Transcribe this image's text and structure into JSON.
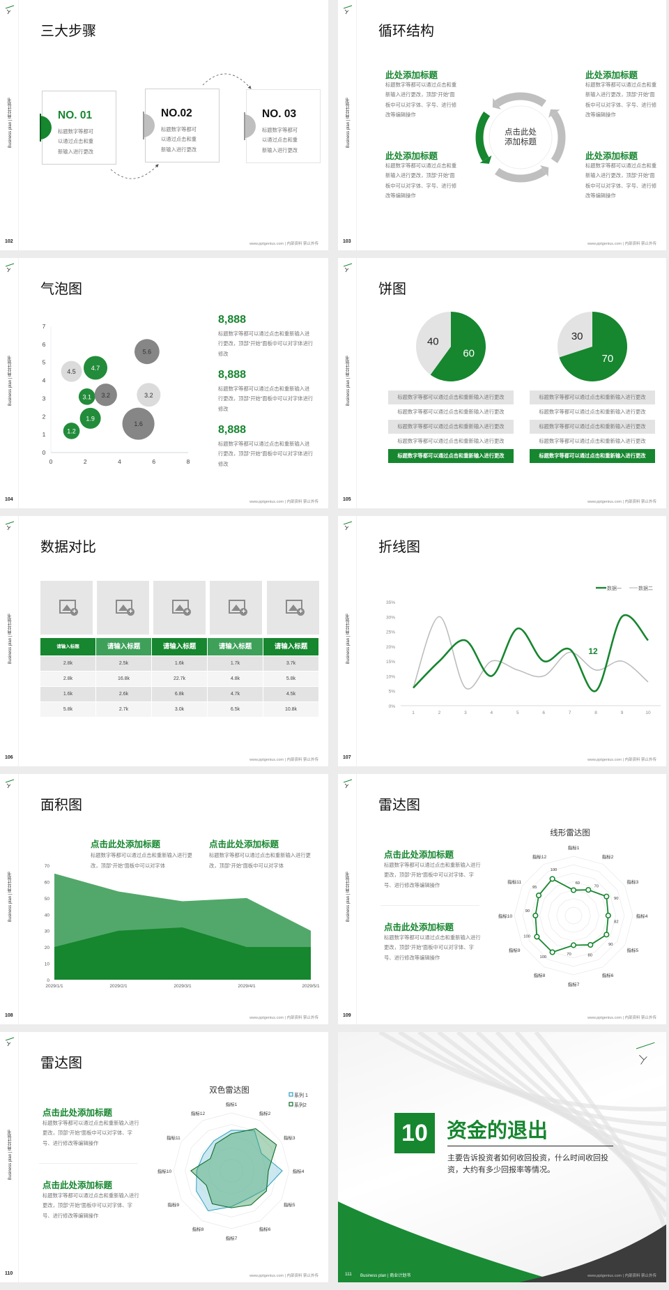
{
  "common": {
    "side_label": "Business plan | 商业计划书",
    "footer": "www.pptgenius.com | 内部资料 禁止外传"
  },
  "colors": {
    "green": "#16862f",
    "mid_green": "#52a86a",
    "light_gray": "#e3e3e3",
    "gray": "#bfbfbf",
    "dark_gray": "#7f7f7f",
    "teal": "#2aa0c0"
  },
  "slides": [
    {
      "page": "102",
      "title": "三大步骤",
      "steps": [
        {
          "label": "NO. 01",
          "text": "标题数字等都可以通过点击和重新输入进行更改",
          "active": true
        },
        {
          "label": "NO.02",
          "text": "标题数字等都可以通过点击和重新输入进行更改",
          "active": false
        },
        {
          "label": "NO. 03",
          "text": "标题数字等都可以通过点击和重新输入进行更改",
          "active": false
        }
      ]
    },
    {
      "page": "103",
      "title": "循环结构",
      "center": "点击此处添加标题",
      "blocks": [
        {
          "heading": "此处添加标题",
          "text": "标题数字等都可以通过点击和重新输入进行更改，顶部“开始”面板中可以对字体、字号、进行修改等编辑操作"
        },
        {
          "heading": "此处添加标题",
          "text": "标题数字等都可以通过点击和重新输入进行更改，顶部“开始”面板中可以对字体、字号、进行修改等编辑操作"
        },
        {
          "heading": "此处添加标题",
          "text": "标题数字等都可以通过点击和重新输入进行更改，顶部“开始”面板中可以对字体、字号、进行修改等编辑操作"
        },
        {
          "heading": "此处添加标题",
          "text": "标题数字等都可以通过点击和重新输入进行更改，顶部“开始”面板中可以对字体、字号、进行修改等编辑操作"
        }
      ]
    },
    {
      "page": "104",
      "title": "气泡图",
      "stats": [
        {
          "value": "8,888",
          "text": "标题数字等都可以通过点击和重新输入进行更改，顶部“开始”面板中可以对字体进行修改"
        },
        {
          "value": "8,888",
          "text": "标题数字等都可以通过点击和重新输入进行更改，顶部“开始”面板中可以对字体进行修改"
        },
        {
          "value": "8,888",
          "text": "标题数字等都可以通过点击和重新输入进行更改，顶部“开始”面板中可以对字体进行修改"
        }
      ]
    },
    {
      "page": "105",
      "title": "饼图",
      "rows": [
        "标题数字等都可以通过点击和重新输入进行更改",
        "标题数字等都可以通过点击和重新输入进行更改",
        "标题数字等都可以通过点击和重新输入进行更改",
        "标题数字等都可以通过点击和重新输入进行更改",
        "标题数字等都可以通过点击和重新输入进行更改"
      ]
    },
    {
      "page": "106",
      "title": "数据对比",
      "table": {
        "headers": [
          "请输入标题",
          "请输入标题",
          "请输入标题",
          "请输入标题",
          "请输入标题"
        ],
        "rows": [
          [
            "2.8k",
            "2.5k",
            "1.6k",
            "1.7k",
            "3.7k"
          ],
          [
            "2.8k",
            "16.8k",
            "22.7k",
            "4.8k",
            "5.8k"
          ],
          [
            "1.6k",
            "2.6k",
            "6.8k",
            "4.7k",
            "4.5k"
          ],
          [
            "5.8k",
            "2.7k",
            "3.0k",
            "6.5k",
            "10.8k"
          ]
        ]
      }
    },
    {
      "page": "107",
      "title": "折线图"
    },
    {
      "page": "108",
      "title": "面积图",
      "blocks": [
        {
          "heading": "点击此处添加标题",
          "text": "标题数字等都可以通过点击和重新输入进行更改，顶部“开始”面板中可以对字体"
        },
        {
          "heading": "点击此处添加标题",
          "text": "标题数字等都可以通过点击和重新输入进行更改，顶部“开始”面板中可以对字体"
        }
      ]
    },
    {
      "page": "109",
      "title": "雷达图",
      "blocks": [
        {
          "heading": "点击此处添加标题",
          "text": "标题数字等都可以通过点击和重新输入进行更改，顶部“开始”面板中可以对字体、字号、进行修改等编辑操作"
        },
        {
          "heading": "点击此处添加标题",
          "text": "标题数字等都可以通过点击和重新输入进行更改，顶部“开始”面板中可以对字体、字号、进行修改等编辑操作"
        }
      ]
    },
    {
      "page": "110",
      "title": "雷达图",
      "blocks": [
        {
          "heading": "点击此处添加标题",
          "text": "标题数字等都可以通过点击和重新输入进行更改，顶部“开始”面板中可以对字体、字号、进行修改等编辑操作"
        },
        {
          "heading": "点击此处添加标题",
          "text": "标题数字等都可以通过点击和重新输入进行更改，顶部“开始”面板中可以对字体、字号、进行修改等编辑操作"
        }
      ]
    },
    {
      "page": "111",
      "number": "10",
      "title": "资金的退出",
      "subtitle": "主要告诉投资者如何收回投资，什么时间收回投资，大约有多少回报率等情况。",
      "footer_label": "Business plan | 商业计划书"
    }
  ],
  "chart_data": [
    {
      "type": "scatter",
      "slide": "104",
      "xlim": [
        0,
        8
      ],
      "ylim": [
        0,
        7
      ],
      "x_ticks": [
        "0",
        "2",
        "4",
        "6",
        "8"
      ],
      "y_ticks": [
        "0",
        "1",
        "2",
        "3",
        "4",
        "5",
        "6",
        "7"
      ],
      "points": [
        {
          "x": 1.2,
          "y": 4.5,
          "size": 2.25,
          "label": "4.5",
          "color": "#d9d9d9"
        },
        {
          "x": 2.6,
          "y": 4.7,
          "size": 2.9,
          "label": "4.7",
          "color": "#16862f"
        },
        {
          "x": 5.6,
          "y": 5.6,
          "size": 3.2,
          "label": "5.6",
          "color": "#7f7f7f"
        },
        {
          "x": 2.1,
          "y": 3.1,
          "size": 1.4,
          "label": "3.1",
          "color": "#16862f"
        },
        {
          "x": 3.2,
          "y": 3.2,
          "size": 2.6,
          "label": "3.2",
          "color": "#7f7f7f"
        },
        {
          "x": 5.7,
          "y": 3.2,
          "size": 2.9,
          "label": "3.2",
          "color": "#d9d9d9"
        },
        {
          "x": 2.3,
          "y": 1.9,
          "size": 2.25,
          "label": "1.9",
          "color": "#16862f"
        },
        {
          "x": 1.2,
          "y": 1.2,
          "size": 1.4,
          "label": "1.2",
          "color": "#16862f"
        },
        {
          "x": 5.1,
          "y": 1.6,
          "size": 5.3,
          "label": "1.6",
          "color": "#7f7f7f"
        }
      ]
    },
    {
      "type": "pie",
      "slide": "105",
      "values": [
        60,
        40
      ],
      "labels": [
        "60",
        "40"
      ]
    },
    {
      "type": "pie",
      "slide": "105",
      "values": [
        70,
        30
      ],
      "labels": [
        "70",
        "30"
      ]
    },
    {
      "type": "line",
      "slide": "107",
      "categories": [
        "1",
        "2",
        "3",
        "4",
        "5",
        "6",
        "7",
        "8",
        "9",
        "10"
      ],
      "ylim": [
        0,
        35
      ],
      "y_ticks": [
        "0%",
        "5%",
        "10%",
        "15%",
        "20%",
        "25%",
        "30%",
        "35%"
      ],
      "legend": "top-right",
      "series": [
        {
          "name": "数据一",
          "values": [
            6,
            15,
            22,
            10,
            26,
            15,
            19,
            5,
            30,
            22
          ]
        },
        {
          "name": "数据二",
          "values": [
            6,
            30,
            6,
            15,
            12,
            10,
            18,
            12,
            15,
            8
          ]
        }
      ],
      "annotation": "12"
    },
    {
      "type": "area",
      "slide": "108",
      "categories": [
        "2029/1/1",
        "2029/2/1",
        "2029/3/1",
        "2029/4/1",
        "2029/5/1"
      ],
      "ylim": [
        0,
        70
      ],
      "y_ticks": [
        "0",
        "10",
        "20",
        "30",
        "40",
        "50",
        "60",
        "70"
      ],
      "series": [
        {
          "values": [
            65,
            54,
            48,
            50,
            30
          ]
        },
        {
          "values": [
            20,
            30,
            32,
            20,
            20
          ]
        }
      ]
    },
    {
      "type": "radar",
      "slide": "109",
      "title": "线形雷达图",
      "categories": [
        "指标1",
        "指标2",
        "指标3",
        "指标4",
        "指标5",
        "指标6",
        "指标7",
        "指标8",
        "指标9",
        "指标10",
        "指标11",
        "指标12"
      ],
      "series": [
        {
          "values": [
            60,
            70,
            90,
            82,
            90,
            80,
            70,
            100,
            100,
            90,
            95,
            100
          ]
        }
      ]
    },
    {
      "type": "radar",
      "slide": "110",
      "title": "双色雷达图",
      "legend": "top-right",
      "categories": [
        "指标1",
        "指标2",
        "指标3",
        "指标4",
        "指标5",
        "指标6",
        "指标7",
        "指标8",
        "指标9",
        "指标10",
        "指标11",
        "指标12"
      ],
      "series": [
        {
          "name": "系列 1",
          "values": [
            3.5,
            4.0,
            3.0,
            4.4,
            3.3,
            2.8,
            3.1,
            4.0,
            3.5,
            3.0,
            2.8,
            3.0
          ]
        },
        {
          "name": "系列2",
          "values": [
            3.2,
            4.2,
            4.5,
            3.2,
            3.5,
            3.4,
            3.2,
            3.3,
            2.5,
            3.5,
            2.1,
            2.7
          ]
        }
      ]
    }
  ]
}
